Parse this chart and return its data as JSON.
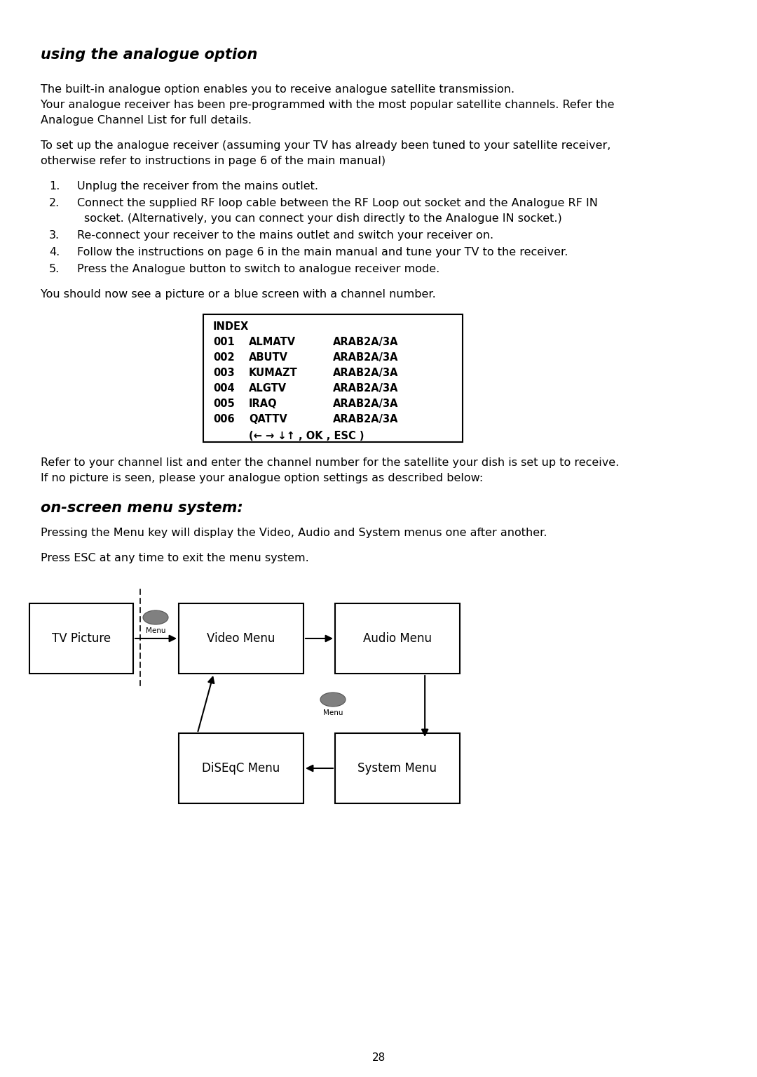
{
  "title": "using the analogue option",
  "section2_title": "on-screen menu system:",
  "para1_line1": "The built-in analogue option enables you to receive analogue satellite transmission.",
  "para1_line2": "Your analogue receiver has been pre-programmed with the most popular satellite channels. Refer the",
  "para1_line3": "Analogue Channel List for full details.",
  "para2_line1": "To set up the analogue receiver (assuming your TV has already been tuned to your satellite receiver,",
  "para2_line2": "otherwise refer to instructions in page 6 of the main manual)",
  "list_items": [
    "Unplug the receiver from the mains outlet.",
    "Connect the supplied RF loop cable between the RF Loop out socket and the Analogue RF IN",
    "socket. (Alternatively, you can connect your dish directly to the Analogue IN socket.)",
    "Re-connect your receiver to the mains outlet and switch your receiver on.",
    "Follow the instructions on page 6 in the main manual and tune your TV to the receiver.",
    "Press the Analogue button to switch to analogue receiver mode."
  ],
  "para3": "You should now see a picture or a blue screen with a channel number.",
  "table_header": "INDEX",
  "table_rows": [
    [
      "001",
      "ALMATV",
      "ARAB2A/3A"
    ],
    [
      "002",
      "ABUTV",
      "ARAB2A/3A"
    ],
    [
      "003",
      "KUMAZT",
      "ARAB2A/3A"
    ],
    [
      "004",
      "ALGTV",
      "ARAB2A/3A"
    ],
    [
      "005",
      "IRAQ",
      "ARAB2A/3A"
    ],
    [
      "006",
      "QATTV",
      "ARAB2A/3A"
    ]
  ],
  "table_nav": "(← → ↓↑ , OK , ESC )",
  "para4_line1": "Refer to your channel list and enter the channel number for the satellite your dish is set up to receive.",
  "para4_line2": "If no picture is seen, please your analogue option settings as described below:",
  "para5": "Pressing the Menu key will display the Video, Audio and System menus one after another.",
  "para6": "Press ESC at any time to exit the menu system.",
  "page_number": "28",
  "bg_color": "#ffffff",
  "text_color": "#000000"
}
